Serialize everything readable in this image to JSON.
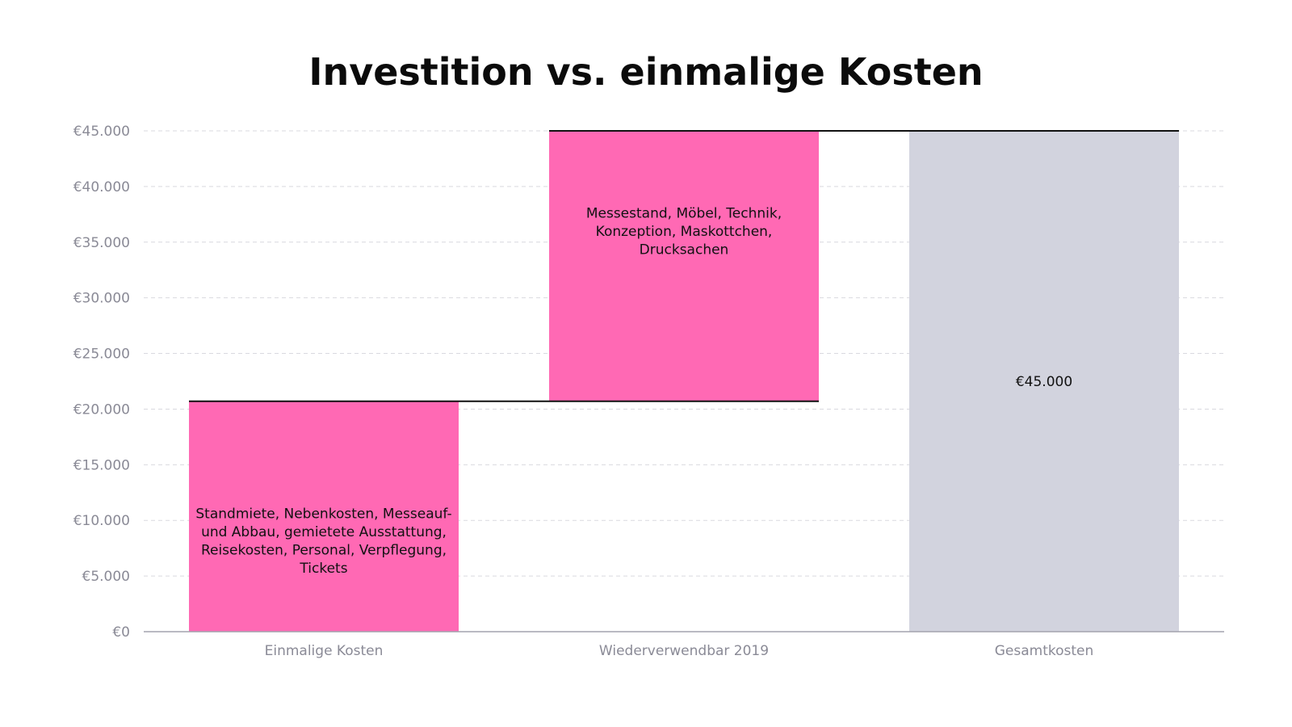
{
  "chart_data": {
    "type": "bar",
    "subtype": "waterfall",
    "title": "Investition vs. einmalige Kosten",
    "xlabel": "",
    "ylabel": "",
    "ylim": [
      0,
      45000
    ],
    "yticks": [
      0,
      5000,
      10000,
      15000,
      20000,
      25000,
      30000,
      35000,
      40000,
      45000
    ],
    "ytick_labels": [
      "€0",
      "€5.000",
      "€10.000",
      "€15.000",
      "€20.000",
      "€25.000",
      "€30.000",
      "€35.000",
      "€40.000",
      "€45.000"
    ],
    "grid": true,
    "categories": [
      "Einmalige Kosten",
      "Wiederverwendbar 2019",
      "Gesamtkosten"
    ],
    "bars": [
      {
        "category": "Einmalige Kosten",
        "start": 0,
        "end": 20700,
        "color": "#ff69b4",
        "label_lines": [
          "Standmiete, Nebenkosten, Messeauf-",
          "und Abbau, gemietete Ausstattung,",
          "Reisekosten, Personal, Verpflegung,",
          "Tickets"
        ]
      },
      {
        "category": "Wiederverwendbar 2019",
        "start": 20700,
        "end": 45000,
        "color": "#ff69b4",
        "label_lines": [
          "Messestand,  Möbel, Technik,",
          "Konzeption, Maskottchen,",
          "Drucksachen"
        ]
      },
      {
        "category": "Gesamtkosten",
        "start": 0,
        "end": 45000,
        "color": "#d2d3de",
        "label_lines": [
          "€45.000"
        ]
      }
    ]
  }
}
